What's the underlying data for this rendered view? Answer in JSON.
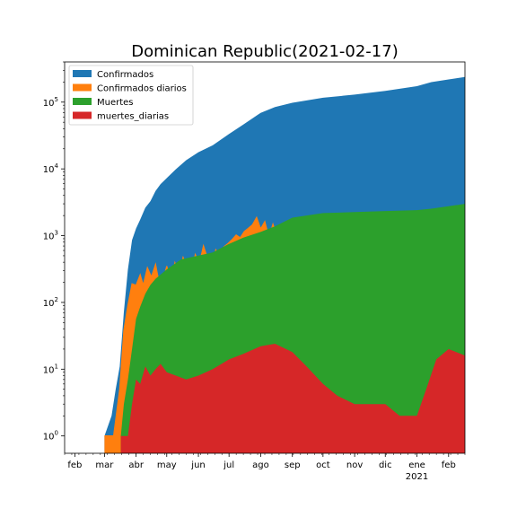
{
  "chart_data": {
    "type": "area",
    "title": "Dominican Republic(2021-02-17)",
    "xlabel": "",
    "ylabel": "",
    "yscale": "log",
    "ylim": [
      0.55,
      400000
    ],
    "xlim": [
      "2020-01-22",
      "2021-02-17"
    ],
    "grid": false,
    "legend_position": "top-left",
    "x_ticks": [
      {
        "date": "2020-02-01",
        "label": "feb"
      },
      {
        "date": "2020-03-01",
        "label": "mar"
      },
      {
        "date": "2020-04-01",
        "label": "abr"
      },
      {
        "date": "2020-05-01",
        "label": "may"
      },
      {
        "date": "2020-06-01",
        "label": "jun"
      },
      {
        "date": "2020-07-01",
        "label": "jul"
      },
      {
        "date": "2020-08-01",
        "label": "ago"
      },
      {
        "date": "2020-09-01",
        "label": "sep"
      },
      {
        "date": "2020-10-01",
        "label": "oct"
      },
      {
        "date": "2020-11-01",
        "label": "nov"
      },
      {
        "date": "2020-12-01",
        "label": "dic"
      },
      {
        "date": "2021-01-01",
        "label": "ene",
        "sublabel": "2021"
      },
      {
        "date": "2021-02-01",
        "label": "feb"
      }
    ],
    "y_ticks": [
      {
        "value": 1,
        "base": "10",
        "exp": "0"
      },
      {
        "value": 10,
        "base": "10",
        "exp": "1"
      },
      {
        "value": 100,
        "base": "10",
        "exp": "2"
      },
      {
        "value": 1000,
        "base": "10",
        "exp": "3"
      },
      {
        "value": 10000,
        "base": "10",
        "exp": "4"
      },
      {
        "value": 100000,
        "base": "10",
        "exp": "5"
      }
    ],
    "series": [
      {
        "name": "Confirmados",
        "color": "#1f77b4",
        "style": "fill",
        "points": [
          [
            "2020-03-01",
            1
          ],
          [
            "2020-03-08",
            2
          ],
          [
            "2020-03-12",
            5
          ],
          [
            "2020-03-16",
            11
          ],
          [
            "2020-03-20",
            72
          ],
          [
            "2020-03-24",
            312
          ],
          [
            "2020-03-28",
            859
          ],
          [
            "2020-04-01",
            1284
          ],
          [
            "2020-04-05",
            1745
          ],
          [
            "2020-04-10",
            2620
          ],
          [
            "2020-04-15",
            3286
          ],
          [
            "2020-04-20",
            4680
          ],
          [
            "2020-04-25",
            5926
          ],
          [
            "2020-05-01",
            7288
          ],
          [
            "2020-05-10",
            9882
          ],
          [
            "2020-05-20",
            13477
          ],
          [
            "2020-06-01",
            17752
          ],
          [
            "2020-06-15",
            22572
          ],
          [
            "2020-07-01",
            33387
          ],
          [
            "2020-07-15",
            46305
          ],
          [
            "2020-08-01",
            69085
          ],
          [
            "2020-08-15",
            84509
          ],
          [
            "2020-09-01",
            97655
          ],
          [
            "2020-10-01",
            116148
          ],
          [
            "2020-11-01",
            129559
          ],
          [
            "2020-12-01",
            147210
          ],
          [
            "2021-01-01",
            173540
          ],
          [
            "2021-01-15",
            199270
          ],
          [
            "2021-02-01",
            219000
          ],
          [
            "2021-02-17",
            237500
          ]
        ]
      },
      {
        "name": "Confirmados diarios",
        "color": "#ff7f0e",
        "style": "line-fill",
        "points": [
          [
            "2020-03-01",
            1
          ],
          [
            "2020-03-10",
            1
          ],
          [
            "2020-03-16",
            5
          ],
          [
            "2020-03-20",
            38
          ],
          [
            "2020-03-24",
            90
          ],
          [
            "2020-03-28",
            190
          ],
          [
            "2020-04-01",
            180
          ],
          [
            "2020-04-05",
            260
          ],
          [
            "2020-04-08",
            180
          ],
          [
            "2020-04-12",
            330
          ],
          [
            "2020-04-16",
            240
          ],
          [
            "2020-04-20",
            370
          ],
          [
            "2020-04-24",
            180
          ],
          [
            "2020-04-28",
            230
          ],
          [
            "2020-05-01",
            350
          ],
          [
            "2020-05-05",
            190
          ],
          [
            "2020-05-09",
            390
          ],
          [
            "2020-05-13",
            260
          ],
          [
            "2020-05-17",
            470
          ],
          [
            "2020-05-21",
            330
          ],
          [
            "2020-05-25",
            270
          ],
          [
            "2020-05-29",
            520
          ],
          [
            "2020-06-02",
            380
          ],
          [
            "2020-06-06",
            700
          ],
          [
            "2020-06-10",
            450
          ],
          [
            "2020-06-14",
            300
          ],
          [
            "2020-06-18",
            610
          ],
          [
            "2020-06-22",
            480
          ],
          [
            "2020-06-26",
            680
          ],
          [
            "2020-06-30",
            760
          ],
          [
            "2020-07-04",
            870
          ],
          [
            "2020-07-08",
            1020
          ],
          [
            "2020-07-12",
            930
          ],
          [
            "2020-07-16",
            1150
          ],
          [
            "2020-07-20",
            1290
          ],
          [
            "2020-07-24",
            1450
          ],
          [
            "2020-07-28",
            1870
          ],
          [
            "2020-08-01",
            1260
          ],
          [
            "2020-08-05",
            1620
          ],
          [
            "2020-08-09",
            940
          ],
          [
            "2020-08-13",
            1480
          ],
          [
            "2020-08-17",
            980
          ],
          [
            "2020-08-21",
            1050
          ],
          [
            "2020-08-25",
            820
          ],
          [
            "2020-08-29",
            690
          ],
          [
            "2020-09-02",
            880
          ],
          [
            "2020-09-06",
            950
          ],
          [
            "2020-09-10",
            620
          ],
          [
            "2020-09-14",
            1050
          ],
          [
            "2020-09-18",
            1380
          ],
          [
            "2020-09-22",
            820
          ],
          [
            "2020-09-26",
            1100
          ],
          [
            "2020-09-30",
            650
          ],
          [
            "2020-10-04",
            430
          ],
          [
            "2020-10-08",
            520
          ],
          [
            "2020-10-12",
            370
          ],
          [
            "2020-10-16",
            460
          ],
          [
            "2020-10-20",
            300
          ],
          [
            "2020-10-24",
            420
          ],
          [
            "2020-10-28",
            520
          ],
          [
            "2020-11-01",
            370
          ],
          [
            "2020-11-05",
            480
          ],
          [
            "2020-11-09",
            260
          ],
          [
            "2020-11-13",
            430
          ],
          [
            "2020-11-17",
            610
          ],
          [
            "2020-11-21",
            390
          ],
          [
            "2020-11-25",
            520
          ],
          [
            "2020-11-29",
            460
          ],
          [
            "2020-12-03",
            720
          ],
          [
            "2020-12-07",
            560
          ],
          [
            "2020-12-11",
            980
          ],
          [
            "2020-12-15",
            430
          ],
          [
            "2020-12-19",
            860
          ],
          [
            "2020-12-23",
            1330
          ],
          [
            "2020-12-27",
            590
          ],
          [
            "2020-12-31",
            820
          ],
          [
            "2021-01-04",
            1080
          ],
          [
            "2021-01-08",
            1320
          ],
          [
            "2021-01-12",
            1850
          ],
          [
            "2021-01-16",
            1230
          ],
          [
            "2021-01-20",
            2300
          ],
          [
            "2021-01-24",
            1400
          ],
          [
            "2021-01-28",
            1870
          ],
          [
            "2021-02-01",
            1200
          ],
          [
            "2021-02-05",
            950
          ],
          [
            "2021-02-09",
            1220
          ],
          [
            "2021-02-13",
            780
          ],
          [
            "2021-02-17",
            540
          ]
        ]
      },
      {
        "name": "Muertes",
        "color": "#2ca02c",
        "style": "fill",
        "points": [
          [
            "2020-03-17",
            1
          ],
          [
            "2020-03-20",
            3
          ],
          [
            "2020-03-24",
            7
          ],
          [
            "2020-03-28",
            20
          ],
          [
            "2020-04-01",
            57
          ],
          [
            "2020-04-05",
            86
          ],
          [
            "2020-04-10",
            135
          ],
          [
            "2020-04-15",
            183
          ],
          [
            "2020-04-20",
            226
          ],
          [
            "2020-05-01",
            313
          ],
          [
            "2020-05-15",
            441
          ],
          [
            "2020-06-01",
            502
          ],
          [
            "2020-06-15",
            562
          ],
          [
            "2020-07-01",
            754
          ],
          [
            "2020-07-15",
            932
          ],
          [
            "2020-08-01",
            1137
          ],
          [
            "2020-08-15",
            1381
          ],
          [
            "2020-09-01",
            1862
          ],
          [
            "2020-10-01",
            2178
          ],
          [
            "2020-11-01",
            2256
          ],
          [
            "2020-12-01",
            2337
          ],
          [
            "2021-01-01",
            2414
          ],
          [
            "2021-01-15",
            2531
          ],
          [
            "2021-02-01",
            2757
          ],
          [
            "2021-02-17",
            3000
          ]
        ]
      },
      {
        "name": "muertes_diarias",
        "color": "#d62728",
        "style": "fill",
        "points": [
          [
            "2020-03-17",
            1
          ],
          [
            "2020-03-24",
            1
          ],
          [
            "2020-03-28",
            3
          ],
          [
            "2020-04-01",
            7
          ],
          [
            "2020-04-05",
            6
          ],
          [
            "2020-04-10",
            11
          ],
          [
            "2020-04-15",
            8
          ],
          [
            "2020-04-20",
            10
          ],
          [
            "2020-04-25",
            12
          ],
          [
            "2020-05-01",
            9
          ],
          [
            "2020-05-10",
            8
          ],
          [
            "2020-05-20",
            7
          ],
          [
            "2020-06-01",
            8
          ],
          [
            "2020-06-15",
            10
          ],
          [
            "2020-07-01",
            14
          ],
          [
            "2020-07-15",
            17
          ],
          [
            "2020-08-01",
            22
          ],
          [
            "2020-08-15",
            24
          ],
          [
            "2020-09-01",
            18
          ],
          [
            "2020-09-15",
            11
          ],
          [
            "2020-10-01",
            6
          ],
          [
            "2020-10-15",
            4
          ],
          [
            "2020-11-01",
            3
          ],
          [
            "2020-11-15",
            3
          ],
          [
            "2020-12-01",
            3
          ],
          [
            "2020-12-15",
            2
          ],
          [
            "2021-01-01",
            2
          ],
          [
            "2021-01-10",
            5
          ],
          [
            "2021-01-20",
            14
          ],
          [
            "2021-02-01",
            20
          ],
          [
            "2021-02-17",
            16
          ]
        ]
      }
    ]
  }
}
